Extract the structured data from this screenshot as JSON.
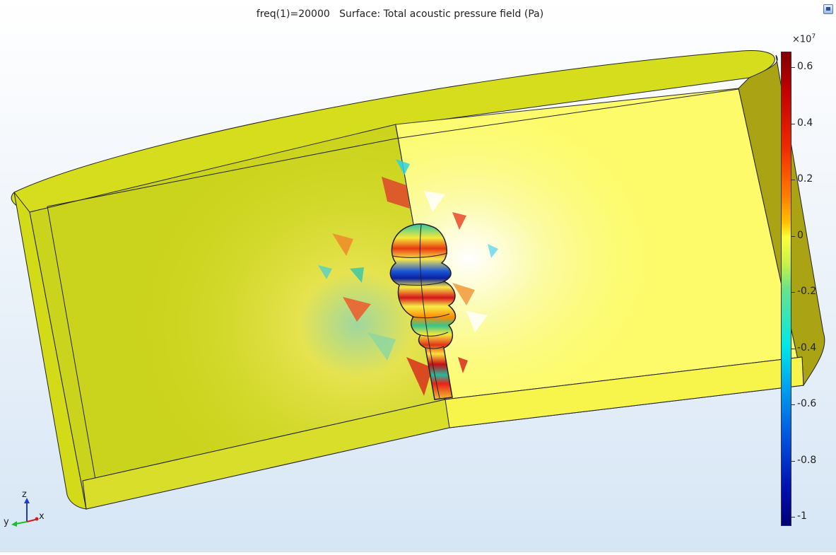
{
  "plot": {
    "title": "freq(1)=20000   Surface: Total acoustic pressure field (Pa)"
  },
  "colorbar": {
    "scale_base": "×10",
    "scale_power": "7",
    "ticks": [
      "0.6",
      "0.4",
      "0.2",
      "0",
      "-0.2",
      "-0.4",
      "-0.6",
      "-0.8",
      "-1"
    ],
    "colormap": "rainbow",
    "color_max": "#7f0000",
    "color_min": "#00007a"
  },
  "axes": {
    "z_label": "z",
    "y_label": "y",
    "x_label": "x"
  },
  "model": {
    "body_color": "#f5f24a",
    "sphere_colors": [
      "#d7141b",
      "#0b2fc2",
      "#26c9a4"
    ]
  },
  "icons": {
    "view_control": "view-control-icon"
  }
}
